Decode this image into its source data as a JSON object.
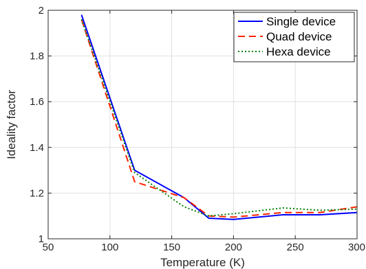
{
  "chart_data": {
    "type": "line",
    "title": "",
    "xlabel": "Temperature (K)",
    "ylabel": "Ideality factor",
    "xlim": [
      50,
      300
    ],
    "ylim": [
      1,
      2
    ],
    "xticks": [
      50,
      100,
      150,
      200,
      250,
      300
    ],
    "yticks": [
      1,
      1.2,
      1.4,
      1.6,
      1.8,
      2
    ],
    "xtick_labels": [
      "50",
      "100",
      "150",
      "200",
      "250",
      "300"
    ],
    "ytick_labels": [
      "1",
      "1.2",
      "1.4",
      "1.6",
      "1.8",
      "2"
    ],
    "grid": true,
    "legend_position": "top-right",
    "series": [
      {
        "name": "Single device",
        "color": "#0000ff",
        "style": "solid",
        "x": [
          77,
          120,
          160,
          180,
          200,
          240,
          270,
          300
        ],
        "y": [
          1.98,
          1.3,
          1.18,
          1.09,
          1.085,
          1.105,
          1.105,
          1.115
        ]
      },
      {
        "name": "Quad device",
        "color": "#ff2200",
        "style": "dashed",
        "x": [
          77,
          120,
          160,
          180,
          200,
          240,
          270,
          300
        ],
        "y": [
          1.96,
          1.25,
          1.18,
          1.1,
          1.095,
          1.115,
          1.115,
          1.14
        ]
      },
      {
        "name": "Hexa device",
        "color": "#008000",
        "style": "dotted",
        "x": [
          77,
          120,
          160,
          180,
          200,
          240,
          270,
          300
        ],
        "y": [
          1.96,
          1.29,
          1.14,
          1.1,
          1.11,
          1.135,
          1.125,
          1.13
        ]
      }
    ]
  }
}
